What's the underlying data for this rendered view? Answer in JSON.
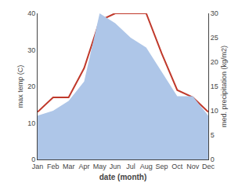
{
  "chart_data": {
    "type": "line",
    "xlabel": "date (month)",
    "ylabel": "max temp (C)",
    "y2label": "med. precipitation (kg/m2)",
    "categories": [
      "Jan",
      "Feb",
      "Mar",
      "Apr",
      "May",
      "Jun",
      "Jul",
      "Aug",
      "Sep",
      "Oct",
      "Nov",
      "Dec"
    ],
    "series": [
      {
        "type": "area",
        "axis": "y2",
        "color": "#aec6e8",
        "values": [
          9,
          10,
          12,
          16,
          30,
          28,
          25,
          23,
          18,
          13,
          13,
          9
        ]
      },
      {
        "type": "line",
        "color": "#c0392b",
        "values": [
          13,
          17,
          17,
          25,
          38,
          40,
          40,
          40,
          29,
          19,
          17,
          13
        ]
      }
    ],
    "ylim": [
      0,
      40
    ],
    "yticks": [
      0,
      10,
      20,
      30,
      40
    ],
    "y2lim": [
      0,
      30
    ],
    "y2ticks": [
      0,
      5,
      10,
      15,
      20,
      25,
      30
    ],
    "grid": false
  }
}
